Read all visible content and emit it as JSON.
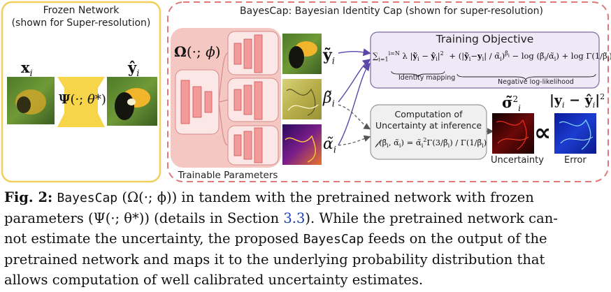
{
  "figure": {
    "frozen_box": {
      "title_line1": "Frozen Network",
      "title_line2": "(shown for Super-resolution)",
      "input_label": "x_i",
      "psi_label": "Ψ(·; θ*)",
      "output_label": "ŷ_i"
    },
    "bayescap_box": {
      "title": "BayesCap: Bayesian Identity Cap (shown for super-resolution)",
      "omega_label": "Ω(·; ϕ)",
      "trainable_label": "Trainable Parameters",
      "y_tilde": "ỹ_i",
      "beta_tilde": "β̃_i",
      "alpha_tilde": "α̃_i"
    },
    "objective": {
      "title": "Training Objective",
      "identity_caption": "Identity mapping",
      "nll_caption": "Negative log-likelihood"
    },
    "computation": {
      "line1": "Computation of",
      "line2": "Uncertainty at inference"
    },
    "results": {
      "sigma_label": "σ̃²_i",
      "error_label": "|y_i − ŷ_i|²",
      "proportional": "∝",
      "uncertainty_caption": "Uncertainty",
      "error_caption": "Error"
    },
    "colors": {
      "frozen_border": "#f2cf5b",
      "frozen_block": "#f7d54a",
      "bayescap_border": "#e07a7a",
      "trainable_bg": "#f4c7c3",
      "objective_bg": "#efe8f7",
      "objective_border": "#7a6aa0",
      "computation_bg": "#f0f0f0",
      "arrow_purple": "#5a47a8"
    }
  },
  "caption": {
    "fig_label": "Fig. 2:",
    "l1_a": "BayesCap",
    "l1_b": "(Ω(·; ϕ)) in tandem with the pretrained network with frozen",
    "l2_a": "parameters (Ψ(·; θ*)) (details in Section",
    "l2_link": "3.3",
    "l2_b": "). While the pretrained network can-",
    "l3_a": "not estimate the uncertainty, the proposed",
    "l3_mono": "BayesCap",
    "l3_b": "feeds on the output of the",
    "l4": "pretrained network and maps it to the underlying probability distribution that",
    "l5": "allows computation of well calibrated uncertainty estimates."
  }
}
